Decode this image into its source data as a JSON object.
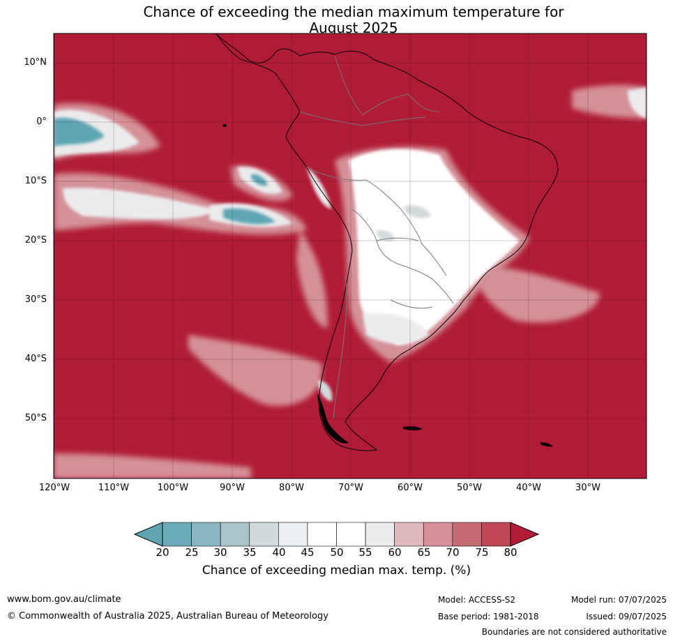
{
  "title_line1": "Chance of exceeding the median maximum temperature for",
  "title_line2": "August 2025",
  "map": {
    "latitude_labels": [
      "10°N",
      "0°",
      "10°S",
      "20°S",
      "30°S",
      "40°S",
      "50°S"
    ],
    "longitude_labels": [
      "120°W",
      "110°W",
      "100°W",
      "90°W",
      "80°W",
      "70°W",
      "60°W",
      "50°W",
      "40°W",
      "30°W"
    ]
  },
  "colorbar": {
    "labels": [
      "20",
      "25",
      "30",
      "35",
      "40",
      "45",
      "50",
      "55",
      "60",
      "65",
      "70",
      "75",
      "80"
    ],
    "colors": [
      "#5fa6b5",
      "#6aaab9",
      "#8bb7c4",
      "#aac4c9",
      "#d2d9da",
      "#eaf0f2",
      "#ffffff",
      "#ffffff",
      "#ebebec",
      "#e0b9be",
      "#d4919a",
      "#c56b76",
      "#bf4757",
      "#b01c37"
    ],
    "title": "Chance of exceeding median max. temp. (%)"
  },
  "colors": {
    "background": "#b01c37",
    "land_low": "#ffffff",
    "ocean_low": "#5fa6b5"
  },
  "footer": {
    "website": "www.bom.gov.au/climate",
    "copyright": "© Commonwealth of Australia 2025, Australian Bureau of Meteorology",
    "model": "Model: ACCESS-S2",
    "base_period": "Base period: 1981-2018",
    "model_run": "Model run: 07/07/2025",
    "issued": "Issued: 09/07/2025",
    "disclaimer": "Boundaries are not considered authoritative"
  }
}
